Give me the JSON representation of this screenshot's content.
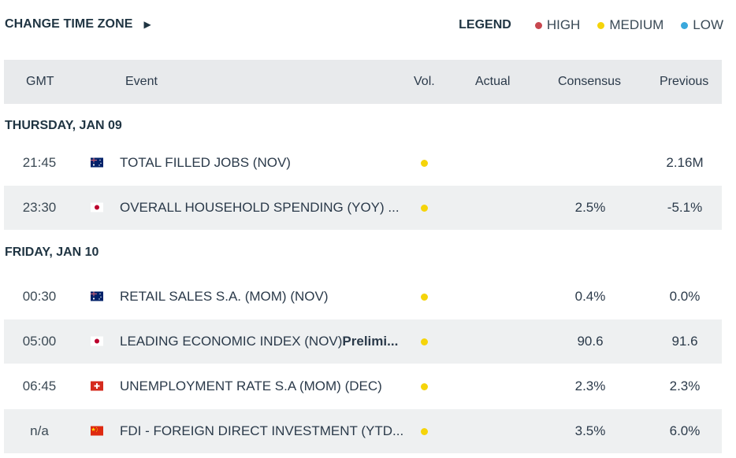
{
  "toolbar": {
    "change_tz_label": "CHANGE TIME ZONE",
    "arrow_glyph": "▶"
  },
  "legend": {
    "title": "LEGEND",
    "items": [
      {
        "label": "HIGH",
        "color": "#c8474f"
      },
      {
        "label": "MEDIUM",
        "color": "#f5d40a"
      },
      {
        "label": "LOW",
        "color": "#3aa8dc"
      }
    ]
  },
  "table": {
    "headers": {
      "time": "GMT",
      "event": "Event",
      "vol": "Vol.",
      "actual": "Actual",
      "consensus": "Consensus",
      "previous": "Previous"
    },
    "days": [
      {
        "label": "THURSDAY, JAN 09",
        "rows": [
          {
            "time": "21:45",
            "country": "AU",
            "flag_icon": "australia-flag-icon",
            "event": "TOTAL FILLED JOBS (NOV)",
            "event_bold": "",
            "volatility": "medium",
            "actual": "",
            "consensus": "",
            "previous": "2.16M"
          },
          {
            "time": "23:30",
            "country": "JP",
            "flag_icon": "japan-flag-icon",
            "event": "OVERALL HOUSEHOLD SPENDING (YOY) ...",
            "event_bold": "",
            "volatility": "medium",
            "actual": "",
            "consensus": "2.5%",
            "previous": "-5.1%"
          }
        ]
      },
      {
        "label": "FRIDAY, JAN 10",
        "rows": [
          {
            "time": "00:30",
            "country": "AU",
            "flag_icon": "australia-flag-icon",
            "event": "RETAIL SALES S.A. (MOM) (NOV)",
            "event_bold": "",
            "volatility": "medium",
            "actual": "",
            "consensus": "0.4%",
            "previous": "0.0%"
          },
          {
            "time": "05:00",
            "country": "JP",
            "flag_icon": "japan-flag-icon",
            "event": "LEADING ECONOMIC INDEX (NOV)",
            "event_bold": "Prelimi...",
            "volatility": "medium",
            "actual": "",
            "consensus": "90.6",
            "previous": "91.6"
          },
          {
            "time": "06:45",
            "country": "CH",
            "flag_icon": "switzerland-flag-icon",
            "event": "UNEMPLOYMENT RATE S.A (MOM) (DEC)",
            "event_bold": "",
            "volatility": "medium",
            "actual": "",
            "consensus": "2.3%",
            "previous": "2.3%"
          },
          {
            "time": "n/a",
            "country": "CN",
            "flag_icon": "china-flag-icon",
            "event": "FDI - FOREIGN DIRECT INVESTMENT (YTD...",
            "event_bold": "",
            "volatility": "medium",
            "actual": "",
            "consensus": "3.5%",
            "previous": "6.0%"
          }
        ]
      }
    ]
  }
}
